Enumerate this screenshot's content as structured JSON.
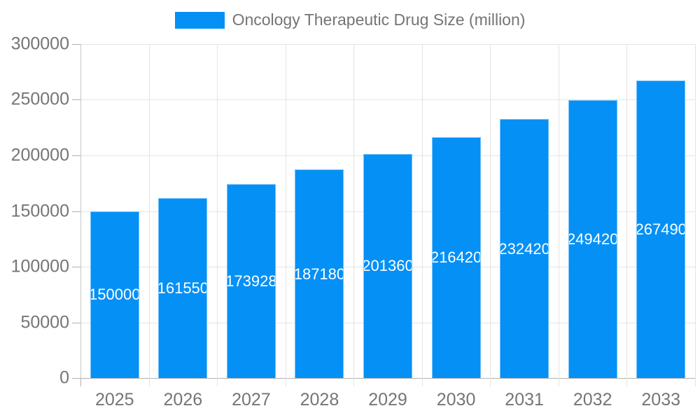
{
  "chart_data": {
    "type": "bar",
    "title": "",
    "categories": [
      "2025",
      "2026",
      "2027",
      "2028",
      "2029",
      "2030",
      "2031",
      "2032",
      "2033"
    ],
    "series": [
      {
        "name": "Oncology Therapeutic Drug Size (million)",
        "color": "#0590f6",
        "values": [
          150000,
          161550,
          173928,
          187180,
          201360,
          216420,
          232420,
          249420,
          267490
        ]
      }
    ],
    "xlabel": "",
    "ylabel": "",
    "ylim": [
      0,
      300000
    ],
    "yticks": [
      0,
      50000,
      100000,
      150000,
      200000,
      250000,
      300000
    ],
    "grid": true,
    "gridlines": "horizontal-and-vertical-boundaries",
    "legend_position": "top-center",
    "value_labels": "inside-center-white-clipped-to-bar"
  },
  "legend": {
    "label": "Oncology Therapeutic Drug Size (million)"
  },
  "colors": {
    "bar": "#0590f6",
    "grid": "#e4e4e4",
    "axis": "#b0b0b0",
    "tick_text": "#757575",
    "value_text": "#ffffff",
    "background": "#ffffff"
  }
}
